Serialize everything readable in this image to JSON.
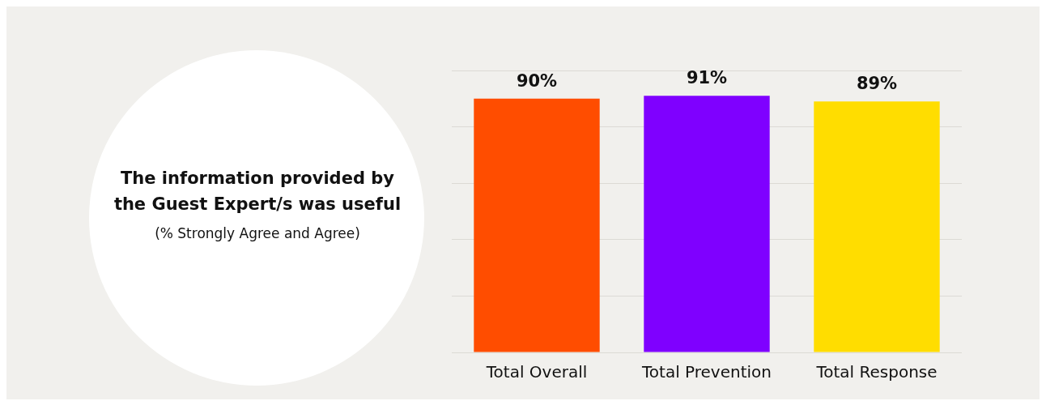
{
  "chart_data": {
    "type": "bar",
    "title": "The information provided by the Guest Expert/s was useful",
    "subtitle": "(% Strongly Agree and Agree)",
    "categories": [
      "Total Overall",
      "Total Prevention",
      "Total Response"
    ],
    "values": [
      90,
      91,
      89
    ],
    "value_labels": [
      "90%",
      "91%",
      "89%"
    ],
    "colors": [
      "#ff4d00",
      "#7f00ff",
      "#ffdd00"
    ],
    "grid": "y",
    "tick_labels": "x",
    "legend": false
  }
}
